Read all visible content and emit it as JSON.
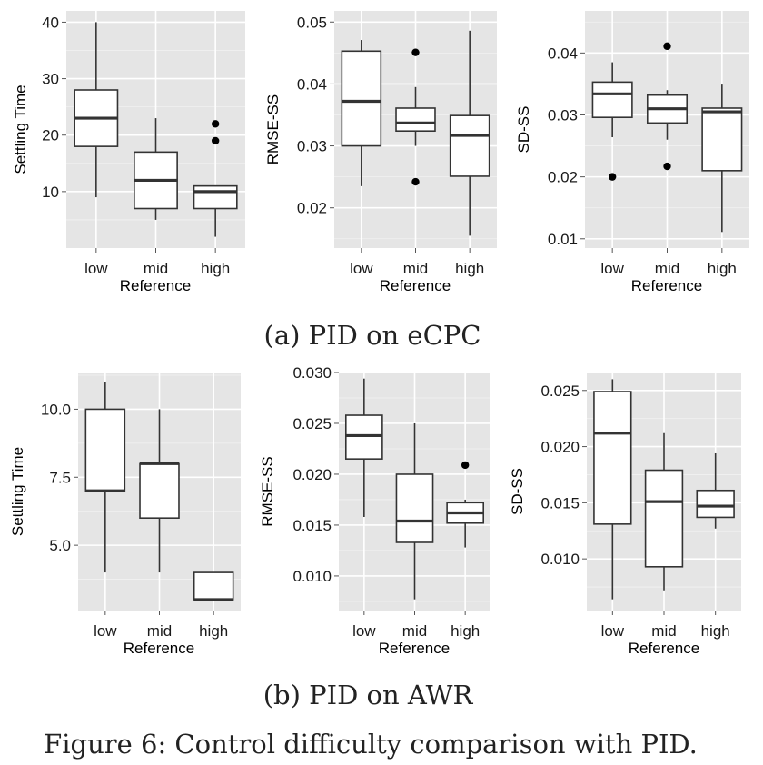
{
  "figure_caption": "Figure 6: Control difficulty comparison with PID.",
  "subcaptions": [
    "(a) PID on eCPC",
    "(b) PID on AWR"
  ],
  "chart_data": [
    {
      "type": "boxplot",
      "group": "(a) PID on eCPC",
      "title": "",
      "xlabel": "Reference",
      "ylabel": "Settling Time",
      "categories": [
        "low",
        "mid",
        "high"
      ],
      "ylim": [
        0,
        42
      ],
      "yticks": [
        10,
        20,
        30,
        40
      ],
      "ytick_labels": [
        "10",
        "20",
        "30",
        "40"
      ],
      "grid": true,
      "boxes": [
        {
          "category": "low",
          "whisker_low": 9,
          "q1": 18,
          "median": 23,
          "q3": 28,
          "whisker_high": 40,
          "outliers": []
        },
        {
          "category": "mid",
          "whisker_low": 5,
          "q1": 7,
          "median": 12,
          "q3": 17,
          "whisker_high": 23,
          "outliers": []
        },
        {
          "category": "high",
          "whisker_low": 2,
          "q1": 7,
          "median": 10,
          "q3": 11,
          "whisker_high": 11,
          "outliers": [
            19,
            22
          ]
        }
      ]
    },
    {
      "type": "boxplot",
      "group": "(a) PID on eCPC",
      "title": "",
      "xlabel": "Reference",
      "ylabel": "RMSE-SS",
      "categories": [
        "low",
        "mid",
        "high"
      ],
      "ylim": [
        0.0135,
        0.0518
      ],
      "yticks": [
        0.02,
        0.03,
        0.04,
        0.05
      ],
      "ytick_labels": [
        "0.02",
        "0.03",
        "0.04",
        "0.05"
      ],
      "grid": true,
      "boxes": [
        {
          "category": "low",
          "whisker_low": 0.0235,
          "q1": 0.03,
          "median": 0.0372,
          "q3": 0.0453,
          "whisker_high": 0.0471,
          "outliers": []
        },
        {
          "category": "mid",
          "whisker_low": 0.03,
          "q1": 0.0324,
          "median": 0.0337,
          "q3": 0.0361,
          "whisker_high": 0.0395,
          "outliers": [
            0.0242,
            0.0451
          ]
        },
        {
          "category": "high",
          "whisker_low": 0.0155,
          "q1": 0.0251,
          "median": 0.0317,
          "q3": 0.0349,
          "whisker_high": 0.0486,
          "outliers": []
        }
      ]
    },
    {
      "type": "boxplot",
      "group": "(a) PID on eCPC",
      "title": "",
      "xlabel": "Reference",
      "ylabel": "SD-SS",
      "categories": [
        "low",
        "mid",
        "high"
      ],
      "ylim": [
        0.0085,
        0.0468
      ],
      "yticks": [
        0.01,
        0.02,
        0.03,
        0.04
      ],
      "ytick_labels": [
        "0.01",
        "0.02",
        "0.03",
        "0.04"
      ],
      "grid": true,
      "boxes": [
        {
          "category": "low",
          "whisker_low": 0.0264,
          "q1": 0.0296,
          "median": 0.0334,
          "q3": 0.0353,
          "whisker_high": 0.0385,
          "outliers": [
            0.02
          ]
        },
        {
          "category": "mid",
          "whisker_low": 0.026,
          "q1": 0.0287,
          "median": 0.031,
          "q3": 0.0332,
          "whisker_high": 0.034,
          "outliers": [
            0.0217,
            0.0411
          ]
        },
        {
          "category": "high",
          "whisker_low": 0.0111,
          "q1": 0.021,
          "median": 0.0305,
          "q3": 0.0311,
          "whisker_high": 0.0349,
          "outliers": []
        }
      ]
    },
    {
      "type": "boxplot",
      "group": "(b) PID on AWR",
      "title": "",
      "xlabel": "Reference",
      "ylabel": "Settling Time",
      "categories": [
        "low",
        "mid",
        "high"
      ],
      "ylim": [
        2.6,
        11.35
      ],
      "yticks": [
        5.0,
        7.5,
        10.0
      ],
      "ytick_labels": [
        "5.0",
        "7.5",
        "10.0"
      ],
      "grid": true,
      "boxes": [
        {
          "category": "low",
          "whisker_low": 4,
          "q1": 7,
          "median": 7,
          "q3": 10,
          "whisker_high": 11,
          "outliers": []
        },
        {
          "category": "mid",
          "whisker_low": 4,
          "q1": 6,
          "median": 8,
          "q3": 8,
          "whisker_high": 10,
          "outliers": []
        },
        {
          "category": "high",
          "whisker_low": 3,
          "q1": 3,
          "median": 3,
          "q3": 4,
          "whisker_high": 4,
          "outliers": []
        }
      ]
    },
    {
      "type": "boxplot",
      "group": "(b) PID on AWR",
      "title": "",
      "xlabel": "Reference",
      "ylabel": "RMSE-SS",
      "categories": [
        "low",
        "mid",
        "high"
      ],
      "ylim": [
        0.0066,
        0.03
      ],
      "yticks": [
        0.01,
        0.015,
        0.02,
        0.025,
        0.03
      ],
      "ytick_labels": [
        "0.010",
        "0.015",
        "0.020",
        "0.025",
        "0.030"
      ],
      "grid": true,
      "boxes": [
        {
          "category": "low",
          "whisker_low": 0.0158,
          "q1": 0.0215,
          "median": 0.0238,
          "q3": 0.0258,
          "whisker_high": 0.0294,
          "outliers": []
        },
        {
          "category": "mid",
          "whisker_low": 0.0077,
          "q1": 0.0133,
          "median": 0.0154,
          "q3": 0.02,
          "whisker_high": 0.025,
          "outliers": []
        },
        {
          "category": "high",
          "whisker_low": 0.0128,
          "q1": 0.0152,
          "median": 0.0162,
          "q3": 0.0172,
          "whisker_high": 0.0175,
          "outliers": [
            0.0209
          ]
        }
      ]
    },
    {
      "type": "boxplot",
      "group": "(b) PID on AWR",
      "title": "",
      "xlabel": "Reference",
      "ylabel": "SD-SS",
      "categories": [
        "low",
        "mid",
        "high"
      ],
      "ylim": [
        0.0054,
        0.0266
      ],
      "yticks": [
        0.01,
        0.015,
        0.02,
        0.025
      ],
      "ytick_labels": [
        "0.010",
        "0.015",
        "0.020",
        "0.025"
      ],
      "grid": true,
      "boxes": [
        {
          "category": "low",
          "whisker_low": 0.0064,
          "q1": 0.0131,
          "median": 0.0212,
          "q3": 0.0249,
          "whisker_high": 0.026,
          "outliers": []
        },
        {
          "category": "mid",
          "whisker_low": 0.0072,
          "q1": 0.0093,
          "median": 0.0151,
          "q3": 0.0179,
          "whisker_high": 0.0212,
          "outliers": []
        },
        {
          "category": "high",
          "whisker_low": 0.0127,
          "q1": 0.0137,
          "median": 0.0147,
          "q3": 0.0161,
          "whisker_high": 0.0194,
          "outliers": []
        }
      ]
    }
  ]
}
